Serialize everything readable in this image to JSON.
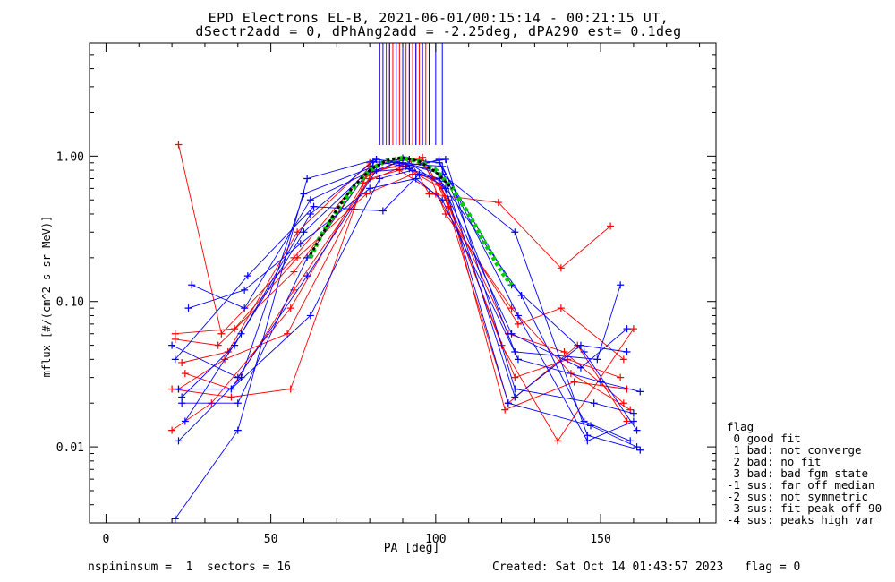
{
  "title": {
    "line1": "EPD Electrons EL-B, 2021-06-01/00:15:14 - 00:21:15 UT,",
    "line2": "dSectr2add = 0, dPhAng2add = -2.25deg, dPA290_est=   0.1deg"
  },
  "axes": {
    "xlabel": "PA [deg]",
    "ylabel": "mflux [#/(cm^2 s sr MeV)]",
    "xticks": [
      "0",
      "50",
      "100",
      "150"
    ],
    "yticks": [
      "0.01",
      "0.10",
      "1.00"
    ]
  },
  "legend": {
    "header": "flag",
    "items": [
      " 0 good fit",
      " 1 bad: not converge",
      " 2 bad: no fit",
      " 3 bad: bad fgm state",
      "-1 sus: far off median",
      "-2 sus: not symmetric",
      "-3 sus: fit peak off 90",
      "-4 sus: peaks high var"
    ]
  },
  "footer": {
    "left": "nspininsum =  1  sectors = 16",
    "right": "Created: Sat Oct 14 01:43:57 2023   flag = 0"
  },
  "colors": {
    "red": "#ff0000",
    "blue": "#0000ff",
    "green": "#00cc00",
    "black": "#000000"
  },
  "chart_data": {
    "type": "line",
    "xlim": [
      -5,
      185
    ],
    "ylim": [
      0.003,
      6
    ],
    "yscale": "log",
    "grid": false,
    "legend_placement": "right-outside",
    "pa_tick_lines": {
      "red": [
        83,
        85,
        86,
        87,
        88,
        89,
        90,
        91,
        92,
        93,
        94,
        95,
        96,
        97
      ],
      "blue": [
        83,
        84,
        86,
        88,
        90,
        92,
        94,
        96,
        98,
        100,
        102
      ]
    },
    "series": [
      {
        "color": "red",
        "x": [
          22,
          35,
          57,
          80,
          92,
          98,
          119,
          138,
          153
        ],
        "y": [
          1.2,
          0.06,
          0.2,
          0.85,
          0.95,
          0.55,
          0.48,
          0.17,
          0.33
        ]
      },
      {
        "color": "red",
        "x": [
          20,
          38,
          56,
          79,
          95,
          104,
          121,
          142,
          158
        ],
        "y": [
          0.025,
          0.022,
          0.025,
          0.75,
          0.95,
          0.5,
          0.018,
          0.028,
          0.025
        ]
      },
      {
        "color": "red",
        "x": [
          21,
          34,
          57,
          78,
          88,
          101,
          122,
          139,
          157
        ],
        "y": [
          0.055,
          0.05,
          0.16,
          0.7,
          0.9,
          0.65,
          0.06,
          0.045,
          0.02
        ]
      },
      {
        "color": "red",
        "x": [
          23,
          37,
          58,
          80,
          96,
          103,
          123,
          141,
          159
        ],
        "y": [
          0.038,
          0.045,
          0.3,
          0.9,
          0.98,
          0.4,
          0.09,
          0.032,
          0.018
        ]
      },
      {
        "color": "red",
        "x": [
          20,
          32,
          56,
          78,
          90,
          102,
          120,
          137,
          160
        ],
        "y": [
          0.013,
          0.02,
          0.09,
          0.65,
          0.85,
          0.6,
          0.05,
          0.011,
          0.065
        ]
      },
      {
        "color": "red",
        "x": [
          22,
          36,
          55,
          81,
          97,
          104,
          124,
          140,
          156
        ],
        "y": [
          0.025,
          0.04,
          0.06,
          0.8,
          0.9,
          0.45,
          0.03,
          0.04,
          0.03
        ]
      },
      {
        "color": "red",
        "x": [
          21,
          39,
          58,
          79,
          93,
          101,
          122,
          143,
          158
        ],
        "y": [
          0.06,
          0.065,
          0.2,
          0.55,
          0.75,
          0.7,
          0.02,
          0.05,
          0.015
        ]
      },
      {
        "color": "red",
        "x": [
          24,
          38,
          57,
          80,
          89,
          100,
          125,
          138,
          157
        ],
        "y": [
          0.032,
          0.025,
          0.12,
          0.7,
          0.8,
          0.55,
          0.07,
          0.09,
          0.04
        ]
      },
      {
        "color": "blue",
        "x": [
          21,
          40,
          61,
          82,
          90,
          102,
          124,
          146,
          162
        ],
        "y": [
          0.0032,
          0.013,
          0.7,
          0.95,
          0.9,
          0.75,
          0.3,
          0.012,
          0.0095
        ]
      },
      {
        "color": "blue",
        "x": [
          22,
          41,
          60,
          83,
          92,
          101,
          123,
          145,
          161
        ],
        "y": [
          0.011,
          0.03,
          0.55,
          0.88,
          0.95,
          0.9,
          0.13,
          0.045,
          0.013
        ]
      },
      {
        "color": "blue",
        "x": [
          23,
          39,
          62,
          81,
          91,
          103,
          124,
          148,
          160
        ],
        "y": [
          0.022,
          0.05,
          0.4,
          0.92,
          0.85,
          0.95,
          0.025,
          0.02,
          0.017
        ]
      },
      {
        "color": "blue",
        "x": [
          25,
          42,
          59,
          80,
          94,
          102,
          125,
          150,
          162
        ],
        "y": [
          0.09,
          0.12,
          0.25,
          0.6,
          0.7,
          0.5,
          0.04,
          0.028,
          0.024
        ]
      },
      {
        "color": "blue",
        "x": [
          20,
          40,
          61,
          82,
          88,
          100,
          123,
          144,
          158
        ],
        "y": [
          0.05,
          0.03,
          0.15,
          0.8,
          0.9,
          0.8,
          0.06,
          0.035,
          0.065
        ]
      },
      {
        "color": "blue",
        "x": [
          22,
          38,
          62,
          83,
          93,
          101,
          126,
          145,
          159
        ],
        "y": [
          0.025,
          0.025,
          0.08,
          0.7,
          0.8,
          0.7,
          0.11,
          0.015,
          0.011
        ]
      },
      {
        "color": "blue",
        "x": [
          24,
          41,
          60,
          81,
          90,
          103,
          122,
          147,
          161
        ],
        "y": [
          0.015,
          0.06,
          0.3,
          0.85,
          0.97,
          0.6,
          0.02,
          0.014,
          0.01
        ]
      },
      {
        "color": "blue",
        "x": [
          21,
          43,
          63,
          84,
          95,
          104,
          124,
          149,
          156
        ],
        "y": [
          0.04,
          0.15,
          0.45,
          0.42,
          0.75,
          0.65,
          0.045,
          0.04,
          0.13
        ]
      },
      {
        "color": "blue",
        "x": [
          23,
          40,
          61,
          82,
          89,
          102,
          125,
          146,
          160
        ],
        "y": [
          0.02,
          0.02,
          0.2,
          0.95,
          0.9,
          0.85,
          0.08,
          0.011,
          0.015
        ]
      },
      {
        "color": "blue",
        "x": [
          26,
          42,
          62,
          80,
          92,
          101,
          124,
          144,
          158
        ],
        "y": [
          0.13,
          0.09,
          0.5,
          0.78,
          0.82,
          0.95,
          0.022,
          0.05,
          0.045
        ]
      }
    ],
    "fit_green": {
      "x": [
        62,
        65,
        70,
        75,
        80,
        85,
        90,
        95,
        100,
        105,
        110,
        115,
        120,
        123
      ],
      "y": [
        0.2,
        0.28,
        0.42,
        0.6,
        0.8,
        0.93,
        0.97,
        0.92,
        0.8,
        0.6,
        0.4,
        0.25,
        0.16,
        0.13
      ]
    },
    "fit_black": {
      "x": [
        62,
        66,
        70,
        75,
        80,
        85,
        90,
        95,
        100,
        105
      ],
      "y": [
        0.21,
        0.3,
        0.43,
        0.62,
        0.8,
        0.93,
        0.98,
        0.92,
        0.78,
        0.6
      ]
    }
  }
}
